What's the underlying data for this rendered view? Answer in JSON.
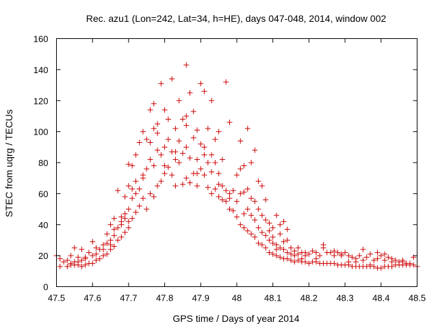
{
  "chart_data": {
    "type": "scatter",
    "title": "Rec. azu1 (Lon=242, Lat=34, h=HE), days 047-048, 2014, window 002",
    "xlabel": "GPS time / Days of year 2014",
    "ylabel": "STEC from uqrg / TECUs",
    "xlim": [
      47.5,
      48.5
    ],
    "ylim": [
      0,
      160
    ],
    "xticks": [
      47.5,
      47.6,
      47.7,
      47.8,
      47.9,
      48.0,
      48.1,
      48.2,
      48.3,
      48.4,
      48.5
    ],
    "xtick_labels": [
      "47.5",
      "47.6",
      "47.7",
      "47.8",
      "47.9",
      "48",
      "48.1",
      "48.2",
      "48.3",
      "48.4",
      "48.5"
    ],
    "yticks": [
      0,
      20,
      40,
      60,
      80,
      100,
      120,
      140,
      160
    ],
    "ytick_labels": [
      "0",
      "20",
      "40",
      "60",
      "80",
      "100",
      "120",
      "140",
      "160"
    ],
    "grid": false,
    "marker": "plus",
    "marker_color": "#cc0000",
    "series": [
      {
        "name": "STEC",
        "points": [
          [
            47.5,
            20
          ],
          [
            47.51,
            18
          ],
          [
            47.51,
            13
          ],
          [
            47.52,
            16
          ],
          [
            47.53,
            13
          ],
          [
            47.53,
            17
          ],
          [
            47.54,
            15
          ],
          [
            47.54,
            20
          ],
          [
            47.55,
            14
          ],
          [
            47.55,
            16
          ],
          [
            47.55,
            25
          ],
          [
            47.56,
            14
          ],
          [
            47.56,
            19
          ],
          [
            47.57,
            13
          ],
          [
            47.57,
            17
          ],
          [
            47.57,
            24
          ],
          [
            47.58,
            14
          ],
          [
            47.58,
            19
          ],
          [
            47.59,
            15
          ],
          [
            47.59,
            22
          ],
          [
            47.6,
            15
          ],
          [
            47.6,
            20
          ],
          [
            47.6,
            29
          ],
          [
            47.61,
            17
          ],
          [
            47.61,
            25
          ],
          [
            47.62,
            18
          ],
          [
            47.62,
            24
          ],
          [
            47.63,
            20
          ],
          [
            47.63,
            27
          ],
          [
            47.64,
            21
          ],
          [
            47.64,
            28
          ],
          [
            47.64,
            34
          ],
          [
            47.65,
            24
          ],
          [
            47.65,
            30
          ],
          [
            47.65,
            40
          ],
          [
            47.66,
            26
          ],
          [
            47.66,
            33
          ],
          [
            47.66,
            44
          ],
          [
            47.67,
            30
          ],
          [
            47.67,
            38
          ],
          [
            47.67,
            62
          ],
          [
            47.68,
            32
          ],
          [
            47.68,
            40
          ],
          [
            47.68,
            45
          ],
          [
            47.69,
            35
          ],
          [
            47.69,
            47
          ],
          [
            47.69,
            58
          ],
          [
            47.7,
            38
          ],
          [
            47.7,
            50
          ],
          [
            47.7,
            65
          ],
          [
            47.7,
            79
          ],
          [
            47.71,
            44
          ],
          [
            47.71,
            57
          ],
          [
            47.71,
            78
          ],
          [
            47.72,
            48
          ],
          [
            47.72,
            60
          ],
          [
            47.72,
            85
          ],
          [
            47.73,
            52
          ],
          [
            47.73,
            63
          ],
          [
            47.73,
            93
          ],
          [
            47.74,
            57
          ],
          [
            47.74,
            72
          ],
          [
            47.74,
            100
          ],
          [
            47.75,
            50
          ],
          [
            47.75,
            76
          ],
          [
            47.75,
            95
          ],
          [
            47.76,
            60
          ],
          [
            47.76,
            82
          ],
          [
            47.76,
            114
          ],
          [
            47.77,
            58
          ],
          [
            47.77,
            78
          ],
          [
            47.77,
            102
          ],
          [
            47.77,
            118
          ],
          [
            47.78,
            65
          ],
          [
            47.78,
            88
          ],
          [
            47.78,
            105
          ],
          [
            47.79,
            68
          ],
          [
            47.79,
            85
          ],
          [
            47.79,
            131
          ],
          [
            47.8,
            73
          ],
          [
            47.8,
            90
          ],
          [
            47.8,
            114
          ],
          [
            47.81,
            77
          ],
          [
            47.81,
            95
          ],
          [
            47.82,
            72
          ],
          [
            47.82,
            87
          ],
          [
            47.82,
            134
          ],
          [
            47.83,
            65
          ],
          [
            47.83,
            82
          ],
          [
            47.83,
            102
          ],
          [
            47.84,
            80
          ],
          [
            47.84,
            94
          ],
          [
            47.84,
            120
          ],
          [
            47.85,
            66
          ],
          [
            47.85,
            86
          ],
          [
            47.85,
            108
          ],
          [
            47.86,
            70
          ],
          [
            47.86,
            90
          ],
          [
            47.86,
            104
          ],
          [
            47.86,
            143
          ],
          [
            47.87,
            67
          ],
          [
            47.87,
            83
          ],
          [
            47.87,
            125
          ],
          [
            47.88,
            73
          ],
          [
            47.88,
            96
          ],
          [
            47.88,
            113
          ],
          [
            47.89,
            65
          ],
          [
            47.89,
            82
          ],
          [
            47.89,
            101
          ],
          [
            47.9,
            76
          ],
          [
            47.9,
            92
          ],
          [
            47.9,
            131
          ],
          [
            47.91,
            72
          ],
          [
            47.91,
            85
          ],
          [
            47.91,
            126
          ],
          [
            47.92,
            64
          ],
          [
            47.92,
            80
          ],
          [
            47.92,
            102
          ],
          [
            47.93,
            60
          ],
          [
            47.93,
            74
          ],
          [
            47.93,
            120
          ],
          [
            47.94,
            63
          ],
          [
            47.94,
            80
          ],
          [
            47.94,
            95
          ],
          [
            47.95,
            58
          ],
          [
            47.95,
            73
          ],
          [
            47.95,
            100
          ],
          [
            47.96,
            56
          ],
          [
            47.96,
            65
          ],
          [
            47.96,
            82
          ],
          [
            47.97,
            55
          ],
          [
            47.97,
            62
          ],
          [
            47.97,
            132
          ],
          [
            47.98,
            50
          ],
          [
            47.98,
            60
          ],
          [
            47.98,
            106
          ],
          [
            47.99,
            49
          ],
          [
            47.99,
            62
          ],
          [
            48.0,
            45
          ],
          [
            48.0,
            55
          ],
          [
            48.0,
            72
          ],
          [
            48.01,
            40
          ],
          [
            48.01,
            60
          ],
          [
            48.01,
            76
          ],
          [
            48.02,
            38
          ],
          [
            48.02,
            47
          ],
          [
            48.02,
            61
          ],
          [
            48.03,
            36
          ],
          [
            48.03,
            50
          ],
          [
            48.03,
            63
          ],
          [
            48.04,
            34
          ],
          [
            48.04,
            46
          ],
          [
            48.04,
            57
          ],
          [
            48.05,
            32
          ],
          [
            48.05,
            43
          ],
          [
            48.05,
            55
          ],
          [
            48.06,
            28
          ],
          [
            48.06,
            38
          ],
          [
            48.06,
            50
          ],
          [
            48.07,
            27
          ],
          [
            48.07,
            35
          ],
          [
            48.07,
            46
          ],
          [
            48.08,
            25
          ],
          [
            48.08,
            33
          ],
          [
            48.08,
            43
          ],
          [
            48.09,
            22
          ],
          [
            48.09,
            30
          ],
          [
            48.09,
            41
          ],
          [
            48.1,
            21
          ],
          [
            48.1,
            28
          ],
          [
            48.1,
            38
          ],
          [
            48.11,
            20
          ],
          [
            48.11,
            27
          ],
          [
            48.11,
            46
          ],
          [
            48.12,
            19
          ],
          [
            48.12,
            25
          ],
          [
            48.12,
            34
          ],
          [
            48.13,
            18
          ],
          [
            48.13,
            24
          ],
          [
            48.13,
            42
          ],
          [
            48.14,
            18
          ],
          [
            48.14,
            22
          ],
          [
            48.14,
            30
          ],
          [
            48.15,
            17
          ],
          [
            48.15,
            21
          ],
          [
            48.16,
            16
          ],
          [
            48.16,
            20
          ],
          [
            48.17,
            17
          ],
          [
            48.17,
            25
          ],
          [
            48.18,
            16
          ],
          [
            48.18,
            22
          ],
          [
            48.19,
            16
          ],
          [
            48.19,
            20
          ],
          [
            48.2,
            15
          ],
          [
            48.2,
            21
          ],
          [
            48.21,
            16
          ],
          [
            48.21,
            23
          ],
          [
            48.22,
            16
          ],
          [
            48.22,
            22
          ],
          [
            48.23,
            15
          ],
          [
            48.23,
            20
          ],
          [
            48.24,
            15
          ],
          [
            48.24,
            27
          ],
          [
            48.25,
            15
          ],
          [
            48.25,
            22
          ],
          [
            48.26,
            15
          ],
          [
            48.26,
            22
          ],
          [
            48.27,
            15
          ],
          [
            48.27,
            20
          ],
          [
            48.28,
            14
          ],
          [
            48.28,
            22
          ],
          [
            48.29,
            14
          ],
          [
            48.29,
            21
          ],
          [
            48.3,
            14
          ],
          [
            48.3,
            22
          ],
          [
            48.31,
            14
          ],
          [
            48.31,
            20
          ],
          [
            48.32,
            13
          ],
          [
            48.32,
            19
          ],
          [
            48.33,
            13
          ],
          [
            48.33,
            18
          ],
          [
            48.34,
            13
          ],
          [
            48.34,
            20
          ],
          [
            48.35,
            13
          ],
          [
            48.35,
            17
          ],
          [
            48.36,
            13
          ],
          [
            48.36,
            19
          ],
          [
            48.37,
            13
          ],
          [
            48.37,
            21
          ],
          [
            48.38,
            13
          ],
          [
            48.38,
            17
          ],
          [
            48.39,
            12
          ],
          [
            48.39,
            18
          ],
          [
            48.4,
            12
          ],
          [
            48.4,
            20
          ],
          [
            48.41,
            13
          ],
          [
            48.41,
            17
          ],
          [
            48.42,
            13
          ],
          [
            48.42,
            19
          ],
          [
            48.43,
            13
          ],
          [
            48.43,
            16
          ],
          [
            48.44,
            14
          ],
          [
            48.44,
            17
          ],
          [
            48.45,
            14
          ],
          [
            48.45,
            16
          ],
          [
            48.46,
            14
          ],
          [
            48.46,
            16
          ],
          [
            48.47,
            14
          ],
          [
            48.47,
            15
          ],
          [
            48.48,
            14
          ],
          [
            48.48,
            15
          ],
          [
            48.49,
            14
          ],
          [
            48.5,
            13
          ],
          [
            47.54,
            14
          ],
          [
            47.56,
            16
          ],
          [
            47.58,
            18
          ],
          [
            47.61,
            21
          ],
          [
            47.63,
            24
          ],
          [
            47.65,
            27
          ],
          [
            47.66,
            37
          ],
          [
            47.68,
            42
          ],
          [
            47.69,
            44
          ],
          [
            47.7,
            42
          ],
          [
            47.71,
            63
          ],
          [
            47.72,
            68
          ],
          [
            47.74,
            70
          ],
          [
            47.76,
            93
          ],
          [
            47.78,
            99
          ],
          [
            47.8,
            78
          ],
          [
            47.81,
            108
          ],
          [
            47.83,
            87
          ],
          [
            47.86,
            110
          ],
          [
            47.89,
            73
          ],
          [
            47.91,
            90
          ],
          [
            47.93,
            85
          ],
          [
            47.95,
            66
          ],
          [
            47.98,
            57
          ],
          [
            48.01,
            94
          ],
          [
            48.02,
            78
          ],
          [
            48.03,
            102
          ],
          [
            48.04,
            80
          ],
          [
            48.05,
            88
          ],
          [
            48.06,
            68
          ],
          [
            48.07,
            65
          ],
          [
            48.08,
            56
          ],
          [
            48.09,
            36
          ],
          [
            48.1,
            32
          ],
          [
            48.11,
            24
          ],
          [
            48.12,
            40
          ],
          [
            48.13,
            29
          ],
          [
            48.14,
            37
          ],
          [
            48.15,
            25
          ],
          [
            48.16,
            23
          ],
          [
            48.17,
            21
          ],
          [
            48.18,
            18
          ],
          [
            48.19,
            22
          ],
          [
            48.22,
            18
          ],
          [
            48.24,
            25
          ],
          [
            48.27,
            23
          ],
          [
            48.29,
            20
          ],
          [
            48.31,
            16
          ],
          [
            48.33,
            16
          ],
          [
            48.35,
            24
          ],
          [
            48.37,
            14
          ],
          [
            48.39,
            22
          ],
          [
            48.41,
            21
          ],
          [
            48.43,
            18
          ],
          [
            48.46,
            17
          ],
          [
            48.49,
            19
          ]
        ]
      }
    ]
  }
}
